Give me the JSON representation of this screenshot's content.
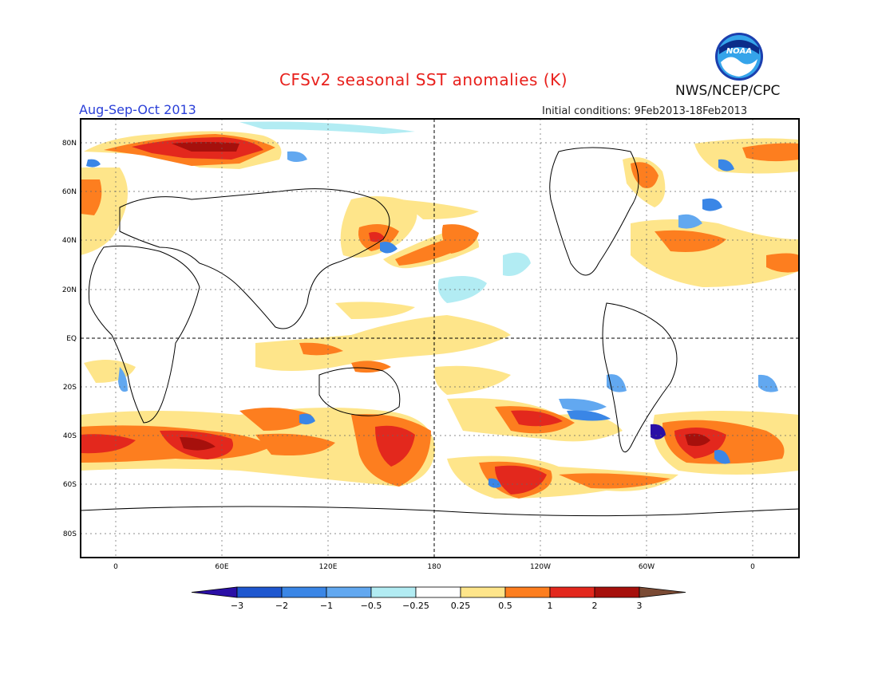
{
  "header": {
    "title": "CFSv2 seasonal SST anomalies (K)",
    "agency": "NWS/NCEP/CPC",
    "season": "Aug-Sep-Oct 2013",
    "initial_conditions": "Initial conditions: 9Feb2013-18Feb2013",
    "logo_text": "NOAA"
  },
  "map": {
    "lat_labels": [
      "80N",
      "60N",
      "40N",
      "20N",
      "EQ",
      "20S",
      "40S",
      "60S",
      "80S"
    ],
    "lon_labels": [
      "0",
      "60E",
      "120E",
      "180",
      "120W",
      "60W",
      "0"
    ]
  },
  "colorbar": {
    "labels": [
      "-3",
      "-2",
      "-1",
      "-0.5",
      "-0.25",
      "0.25",
      "0.5",
      "1",
      "2",
      "3"
    ],
    "colors": [
      "#2a0fa6",
      "#1e57cf",
      "#3a86e6",
      "#62a8f0",
      "#b2ecf3",
      "#ffffff",
      "#fee58a",
      "#fd7e1f",
      "#e3281d",
      "#a6100c",
      "#7a4a34"
    ]
  }
}
